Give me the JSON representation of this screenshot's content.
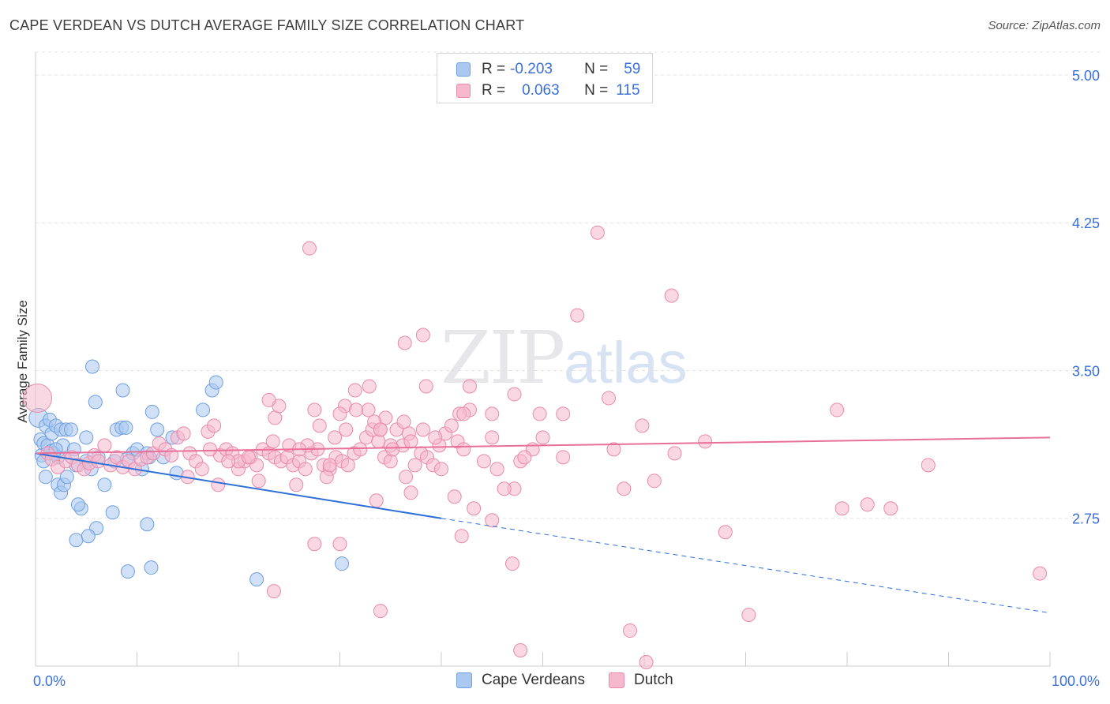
{
  "title": "CAPE VERDEAN VS DUTCH AVERAGE FAMILY SIZE CORRELATION CHART",
  "source": "Source: ZipAtlas.com",
  "watermark": {
    "zip": "ZIP",
    "atlas": "atlas"
  },
  "colors": {
    "blue_fill": "#aac8f0",
    "blue_stroke": "#6f9fe0",
    "blue_line": "#2f6fd6",
    "pink_fill": "#f6b8cc",
    "pink_stroke": "#e98aab",
    "pink_line": "#e8709a",
    "axis_label": "#3a6fd8",
    "grid": "#e3e3e3"
  },
  "legend_top": {
    "rows": [
      {
        "r_label": "R =",
        "r_value": "-0.203",
        "n_label": "N =",
        "n_value": "59"
      },
      {
        "r_label": "R =",
        "r_value": "0.063",
        "n_label": "N =",
        "n_value": "115"
      }
    ]
  },
  "legend_bottom": [
    "Cape Verdeans",
    "Dutch"
  ],
  "chart_data": {
    "type": "scatter",
    "title": "CAPE VERDEAN VS DUTCH AVERAGE FAMILY SIZE CORRELATION CHART",
    "xlabel": "",
    "ylabel": "Average Family Size",
    "xlim": [
      0,
      100
    ],
    "ylim": [
      2.0,
      5.1
    ],
    "x_tick_labels": [
      "0.0%",
      "100.0%"
    ],
    "y_ticks": [
      2.75,
      3.5,
      4.25,
      5.0
    ],
    "y_tick_labels": [
      "2.75",
      "3.50",
      "4.25",
      "5.00"
    ],
    "grid": true,
    "legend_placement": "top-center",
    "series": [
      {
        "name": "Cape Verdeans",
        "points": [
          [
            0.3,
            3.26
          ],
          [
            0.5,
            3.15
          ],
          [
            0.6,
            3.07
          ],
          [
            0.8,
            3.13
          ],
          [
            1.0,
            3.22
          ],
          [
            1.2,
            3.12
          ],
          [
            1.4,
            3.25
          ],
          [
            1.6,
            3.18
          ],
          [
            1.8,
            3.08
          ],
          [
            2.0,
            3.22
          ],
          [
            2.2,
            3.06
          ],
          [
            2.5,
            3.2
          ],
          [
            2.7,
            3.12
          ],
          [
            3.0,
            3.2
          ],
          [
            1.0,
            2.96
          ],
          [
            1.5,
            3.09
          ],
          [
            2.0,
            3.1
          ],
          [
            3.5,
            3.2
          ],
          [
            0.8,
            3.04
          ],
          [
            2.2,
            2.92
          ],
          [
            2.5,
            2.88
          ],
          [
            2.8,
            2.92
          ],
          [
            3.1,
            2.96
          ],
          [
            3.8,
            3.1
          ],
          [
            4.0,
            3.02
          ],
          [
            4.5,
            2.8
          ],
          [
            4.2,
            2.82
          ],
          [
            5.0,
            3.16
          ],
          [
            5.0,
            3.04
          ],
          [
            5.5,
            3.0
          ],
          [
            6.0,
            2.7
          ],
          [
            6.2,
            3.06
          ],
          [
            5.6,
            3.52
          ],
          [
            5.9,
            3.34
          ],
          [
            6.8,
            2.92
          ],
          [
            7.6,
            2.78
          ],
          [
            7.8,
            3.04
          ],
          [
            8.0,
            3.2
          ],
          [
            8.5,
            3.21
          ],
          [
            8.6,
            3.4
          ],
          [
            8.9,
            3.21
          ],
          [
            9.0,
            3.05
          ],
          [
            9.1,
            2.48
          ],
          [
            9.6,
            3.08
          ],
          [
            10.0,
            3.1
          ],
          [
            10.5,
            3.0
          ],
          [
            11.0,
            3.08
          ],
          [
            11.2,
            3.06
          ],
          [
            11.0,
            2.72
          ],
          [
            11.4,
            2.5
          ],
          [
            11.5,
            3.29
          ],
          [
            12.0,
            3.2
          ],
          [
            12.6,
            3.06
          ],
          [
            13.5,
            3.16
          ],
          [
            13.9,
            2.98
          ],
          [
            16.5,
            3.3
          ],
          [
            17.4,
            3.4
          ],
          [
            17.8,
            3.44
          ],
          [
            21.8,
            2.44
          ],
          [
            30.2,
            2.52
          ],
          [
            4.0,
            2.64
          ],
          [
            5.2,
            2.66
          ]
        ]
      },
      {
        "name": "Dutch",
        "points": [
          [
            0.2,
            3.36
          ],
          [
            1.2,
            3.08
          ],
          [
            1.6,
            3.05
          ],
          [
            2.2,
            3.01
          ],
          [
            3.0,
            3.04
          ],
          [
            3.6,
            3.06
          ],
          [
            4.2,
            3.02
          ],
          [
            4.8,
            3.0
          ],
          [
            5.3,
            3.03
          ],
          [
            5.8,
            3.07
          ],
          [
            6.2,
            3.04
          ],
          [
            6.8,
            3.12
          ],
          [
            7.4,
            3.02
          ],
          [
            8.0,
            3.06
          ],
          [
            8.6,
            3.01
          ],
          [
            9.2,
            3.04
          ],
          [
            9.8,
            3.0
          ],
          [
            10.4,
            3.05
          ],
          [
            11.0,
            3.06
          ],
          [
            11.6,
            3.08
          ],
          [
            12.2,
            3.13
          ],
          [
            12.8,
            3.1
          ],
          [
            13.4,
            3.07
          ],
          [
            14.0,
            3.16
          ],
          [
            14.6,
            3.18
          ],
          [
            15.2,
            3.08
          ],
          [
            15.8,
            3.04
          ],
          [
            16.4,
            3.0
          ],
          [
            17.0,
            3.19
          ],
          [
            17.6,
            3.22
          ],
          [
            18.2,
            3.07
          ],
          [
            18.8,
            3.1
          ],
          [
            19.4,
            3.08
          ],
          [
            20.0,
            3.0
          ],
          [
            20.6,
            3.04
          ],
          [
            21.2,
            3.06
          ],
          [
            21.8,
            3.02
          ],
          [
            22.4,
            3.1
          ],
          [
            23.0,
            3.08
          ],
          [
            23.6,
            3.06
          ],
          [
            24.2,
            3.04
          ],
          [
            24.8,
            3.06
          ],
          [
            25.4,
            3.02
          ],
          [
            26.0,
            3.04
          ],
          [
            26.6,
            3.0
          ],
          [
            27.2,
            3.08
          ],
          [
            27.8,
            3.1
          ],
          [
            28.4,
            3.02
          ],
          [
            29.0,
            3.0
          ],
          [
            29.6,
            3.06
          ],
          [
            30.2,
            3.04
          ],
          [
            30.8,
            3.02
          ],
          [
            31.4,
            3.08
          ],
          [
            32.0,
            3.1
          ],
          [
            32.6,
            3.16
          ],
          [
            33.2,
            3.2
          ],
          [
            33.8,
            3.14
          ],
          [
            34.4,
            3.06
          ],
          [
            35.0,
            3.04
          ],
          [
            35.6,
            3.2
          ],
          [
            36.2,
            3.12
          ],
          [
            36.8,
            3.18
          ],
          [
            37.4,
            3.02
          ],
          [
            38.0,
            3.08
          ],
          [
            38.6,
            3.06
          ],
          [
            39.2,
            3.02
          ],
          [
            39.8,
            3.12
          ],
          [
            40.4,
            3.18
          ],
          [
            41.0,
            3.22
          ],
          [
            41.6,
            3.14
          ],
          [
            42.2,
            3.1
          ],
          [
            42.8,
            3.3
          ],
          [
            23.6,
            3.26
          ],
          [
            24.0,
            3.32
          ],
          [
            30.6,
            3.2
          ],
          [
            23.0,
            3.35
          ],
          [
            28.0,
            3.22
          ],
          [
            32.8,
            3.3
          ],
          [
            35.0,
            3.12
          ],
          [
            38.2,
            3.2
          ],
          [
            39.4,
            3.16
          ],
          [
            20.0,
            3.04
          ],
          [
            18.0,
            2.92
          ],
          [
            22.0,
            2.94
          ],
          [
            23.4,
            3.14
          ],
          [
            26.8,
            3.12
          ],
          [
            27.5,
            3.3
          ],
          [
            29.5,
            3.16
          ],
          [
            31.5,
            3.4
          ],
          [
            32.9,
            3.42
          ],
          [
            34.0,
            3.2
          ],
          [
            36.3,
            3.24
          ],
          [
            37.0,
            3.14
          ],
          [
            15.0,
            2.96
          ],
          [
            25.7,
            2.92
          ],
          [
            28.7,
            2.96
          ],
          [
            33.6,
            2.84
          ],
          [
            36.5,
            2.96
          ],
          [
            41.3,
            2.86
          ],
          [
            43.2,
            2.8
          ],
          [
            45.0,
            2.74
          ],
          [
            47.2,
            2.9
          ],
          [
            45.5,
            3.0
          ],
          [
            47.8,
            3.04
          ],
          [
            45.0,
            3.28
          ],
          [
            38.2,
            3.68
          ],
          [
            42.8,
            3.42
          ],
          [
            38.5,
            3.42
          ],
          [
            41.8,
            3.28
          ],
          [
            34.5,
            3.26
          ],
          [
            30.5,
            3.32
          ],
          [
            31.6,
            3.3
          ],
          [
            47.2,
            3.38
          ],
          [
            49.7,
            3.28
          ],
          [
            50.0,
            3.16
          ],
          [
            52.0,
            3.28
          ],
          [
            53.4,
            3.78
          ],
          [
            55.4,
            4.2
          ],
          [
            49.0,
            3.1
          ],
          [
            56.5,
            3.36
          ],
          [
            57.0,
            3.1
          ],
          [
            58.0,
            2.9
          ],
          [
            59.8,
            3.22
          ],
          [
            52.0,
            3.06
          ],
          [
            45.0,
            3.16
          ],
          [
            42.2,
            3.28
          ],
          [
            61.0,
            2.94
          ],
          [
            62.7,
            3.88
          ],
          [
            66.0,
            3.14
          ],
          [
            68.0,
            2.68
          ],
          [
            27.0,
            4.12
          ],
          [
            36.4,
            3.64
          ],
          [
            33.4,
            3.24
          ],
          [
            25.0,
            3.12
          ],
          [
            30.0,
            3.28
          ],
          [
            29.0,
            3.02
          ],
          [
            21.0,
            3.06
          ],
          [
            19.0,
            3.04
          ],
          [
            17.2,
            3.1
          ],
          [
            26.0,
            3.1
          ],
          [
            34.0,
            3.2
          ],
          [
            35.2,
            3.1
          ],
          [
            40.0,
            3.0
          ],
          [
            44.2,
            3.04
          ],
          [
            46.2,
            2.9
          ],
          [
            48.2,
            3.06
          ],
          [
            27.5,
            2.62
          ],
          [
            42.0,
            2.66
          ],
          [
            23.5,
            2.38
          ],
          [
            30.0,
            2.62
          ],
          [
            34.0,
            2.28
          ],
          [
            37.0,
            2.88
          ],
          [
            47.0,
            2.52
          ],
          [
            47.8,
            2.08
          ],
          [
            58.6,
            2.18
          ],
          [
            60.2,
            2.02
          ],
          [
            63.0,
            3.08
          ],
          [
            70.3,
            2.26
          ],
          [
            79.0,
            3.3
          ],
          [
            79.5,
            2.8
          ],
          [
            82.0,
            2.82
          ],
          [
            84.3,
            2.8
          ],
          [
            88.0,
            3.02
          ],
          [
            99.0,
            2.47
          ]
        ]
      }
    ],
    "trend_lines": [
      {
        "series": "Cape Verdeans",
        "x0": 0,
        "y0": 3.08,
        "x1": 40,
        "y1": 2.75,
        "dashed_to": [
          100,
          2.27
        ]
      },
      {
        "series": "Dutch",
        "x0": 0,
        "y0": 3.08,
        "x1": 100,
        "y1": 3.16
      }
    ]
  }
}
